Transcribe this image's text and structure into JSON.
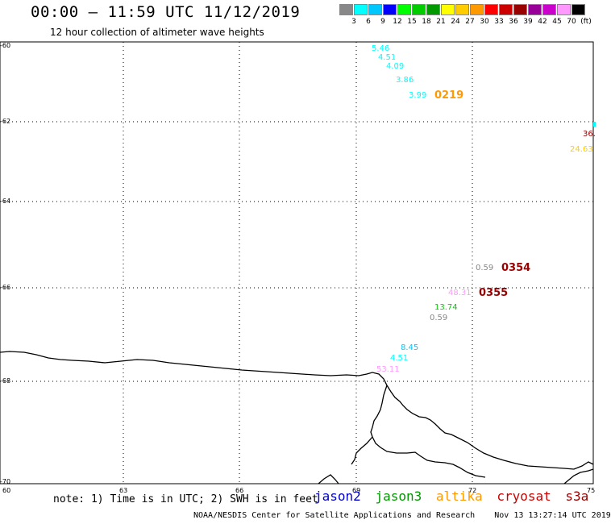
{
  "title": "00:00 – 11:59 UTC 11/12/2019",
  "subtitle": "12 hour collection of altimeter wave heights",
  "legend": {
    "colors": [
      "#888888",
      "#00ffff",
      "#00c8ff",
      "#0000ff",
      "#00ff00",
      "#00cc00",
      "#009900",
      "#ffff00",
      "#ffcc00",
      "#ff9900",
      "#ff0000",
      "#cc0000",
      "#990000",
      "#990099",
      "#cc00cc",
      "#ff99ff",
      "#000000"
    ],
    "ticks": [
      "3",
      "6",
      "9",
      "12",
      "15",
      "18",
      "21",
      "24",
      "27",
      "30",
      "33",
      "36",
      "39",
      "42",
      "45",
      "70",
      "(ft)"
    ]
  },
  "axes": {
    "lat_labels": [
      "-60",
      "-62",
      "-64",
      "-66",
      "-68",
      "-70"
    ],
    "lon_labels": [
      "60",
      "63",
      "66",
      "69",
      "72",
      "75"
    ]
  },
  "observations": [
    {
      "text": "5.46",
      "color": "#00ffff"
    },
    {
      "text": "4.51",
      "color": "#00ffff"
    },
    {
      "text": "4.09",
      "color": "#00ffff"
    },
    {
      "text": "3.86",
      "color": "#00ffff"
    },
    {
      "text": "3.99",
      "color": "#00ffff"
    },
    {
      "text": "0219",
      "color": "#ff9900"
    },
    {
      "text": "36.",
      "color": "#990000"
    },
    {
      "text": "24.63",
      "color": "#ffcc00"
    },
    {
      "text": "0.59",
      "color": "#888888"
    },
    {
      "text": "0354",
      "color": "#990000"
    },
    {
      "text": "48.31",
      "color": "#ff99ff"
    },
    {
      "text": "0355",
      "color": "#990000"
    },
    {
      "text": "13.74",
      "color": "#00cc00"
    },
    {
      "text": "0.59",
      "color": "#888888"
    },
    {
      "text": "8.45",
      "color": "#00c8ff"
    },
    {
      "text": "4.51",
      "color": "#00ffff"
    },
    {
      "text": "53.11",
      "color": "#ff99ff"
    }
  ],
  "note": "note: 1) Time is in UTC; 2) SWH is in feet",
  "satellites": [
    {
      "name": "jason2",
      "color": "#0000cc"
    },
    {
      "name": "jason3",
      "color": "#009900"
    },
    {
      "name": "altika",
      "color": "#ff9900"
    },
    {
      "name": "cryosat",
      "color": "#cc0000"
    },
    {
      "name": "s3a",
      "color": "#990000"
    }
  ],
  "footer": {
    "org": "NOAA/NESDIS Center for Satellite Applications and Research",
    "timestamp": "Nov 13 13:27:14 UTC 2019"
  }
}
